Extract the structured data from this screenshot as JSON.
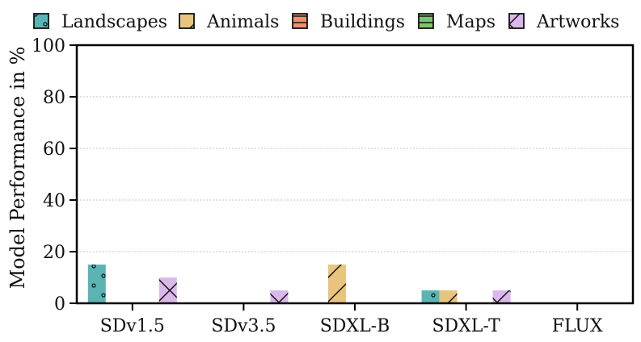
{
  "chart_data": {
    "type": "bar",
    "title": "",
    "xlabel": "",
    "ylabel": "Model Performance in %",
    "ylim": [
      0,
      100
    ],
    "yticks": [
      0,
      20,
      40,
      60,
      80,
      100
    ],
    "grid": "horizontal dashed",
    "legend_position": "top",
    "categories": [
      "SDv1.5",
      "SDv3.5",
      "SDXL-B",
      "SDXL-T",
      "FLUX"
    ],
    "series": [
      {
        "name": "Landscapes",
        "color": "#5ab4b4",
        "hatch": "dots",
        "values": [
          15,
          0,
          0,
          5,
          0
        ]
      },
      {
        "name": "Animals",
        "color": "#e8c47e",
        "hatch": "forward-slash",
        "values": [
          0,
          0,
          15,
          5,
          0
        ]
      },
      {
        "name": "Buildings",
        "color": "#f28e70",
        "hatch": "horizontal",
        "values": [
          0,
          0,
          0,
          0,
          0
        ]
      },
      {
        "name": "Maps",
        "color": "#7fc466",
        "hatch": "horizontal",
        "values": [
          0,
          0,
          0,
          0,
          0
        ]
      },
      {
        "name": "Artworks",
        "color": "#dab8ea",
        "hatch": "cross",
        "values": [
          10,
          5,
          0,
          5,
          0
        ]
      }
    ]
  }
}
